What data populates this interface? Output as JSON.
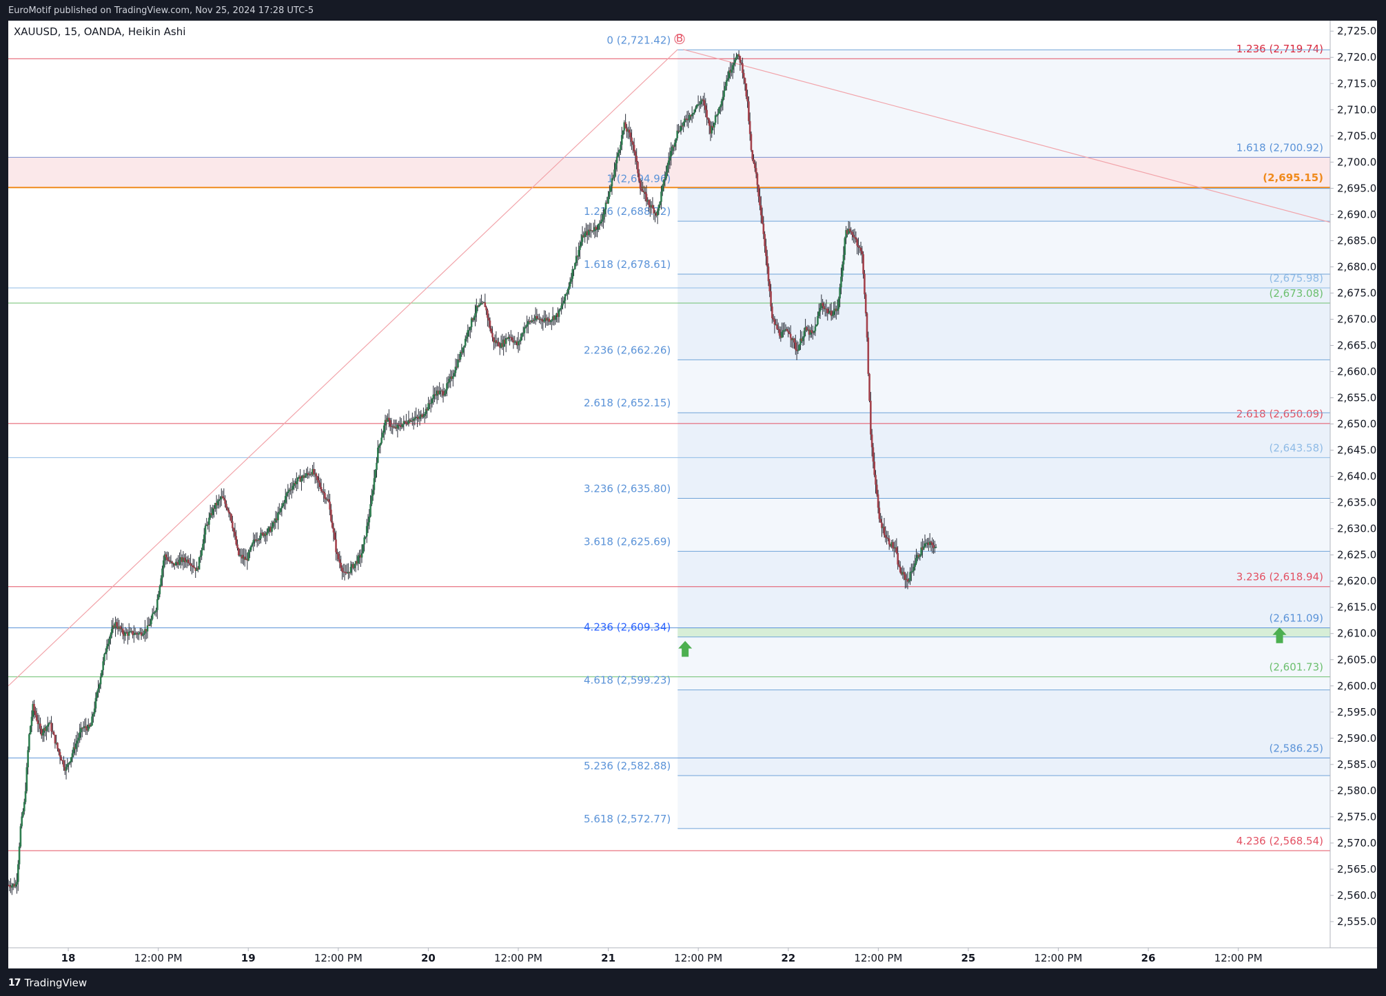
{
  "header": {
    "published": "EuroMotif published on TradingView.com, Nov 25, 2024 17:28 UTC-5"
  },
  "footer": {
    "logo_mark": "17",
    "brand": "TradingView"
  },
  "chart_data": {
    "type": "candlestick",
    "title": "XAUUSD, 15, OANDA, Heikin Ashi",
    "candle_style": "Heikin Ashi",
    "colors": {
      "up": "#2e7d4f",
      "down": "#a3414b",
      "wick": "#2a2e39"
    },
    "y_axis": {
      "range": [
        2550,
        2727
      ],
      "ticks": [
        "2,555.00",
        "2,560.00",
        "2,565.00",
        "2,570.00",
        "2,575.00",
        "2,580.00",
        "2,585.00",
        "2,590.00",
        "2,595.00",
        "2,600.00",
        "2,605.00",
        "2,610.00",
        "2,615.00",
        "2,620.00",
        "2,625.00",
        "2,630.00",
        "2,635.00",
        "2,640.00",
        "2,645.00",
        "2,650.00",
        "2,655.00",
        "2,660.00",
        "2,665.00",
        "2,670.00",
        "2,675.00",
        "2,680.00",
        "2,685.00",
        "2,690.00",
        "2,695.00",
        "2,700.00",
        "2,705.00",
        "2,710.00",
        "2,715.00",
        "2,720.00",
        "2,725.00"
      ],
      "tick_values": [
        2555,
        2560,
        2565,
        2570,
        2575,
        2580,
        2585,
        2590,
        2595,
        2600,
        2605,
        2610,
        2615,
        2620,
        2625,
        2630,
        2635,
        2640,
        2645,
        2650,
        2655,
        2660,
        2665,
        2670,
        2675,
        2680,
        2685,
        2690,
        2695,
        2700,
        2705,
        2710,
        2715,
        2720,
        2725
      ]
    },
    "x_axis": {
      "range": [
        0,
        705
      ],
      "ticks": [
        {
          "t": 32,
          "label": "18"
        },
        {
          "t": 80,
          "label": "12:00 PM"
        },
        {
          "t": 128,
          "label": "19"
        },
        {
          "t": 176,
          "label": "12:00 PM"
        },
        {
          "t": 224,
          "label": "20"
        },
        {
          "t": 272,
          "label": "12:00 PM"
        },
        {
          "t": 320,
          "label": "21"
        },
        {
          "t": 368,
          "label": "12:00 PM"
        },
        {
          "t": 416,
          "label": "22"
        },
        {
          "t": 464,
          "label": "12:00 PM"
        },
        {
          "t": 512,
          "label": "25"
        },
        {
          "t": 560,
          "label": "12:00 PM"
        },
        {
          "t": 608,
          "label": "26"
        },
        {
          "t": 656,
          "label": "12:00 PM"
        }
      ]
    },
    "price_path": [
      [
        0,
        2562
      ],
      [
        4,
        2562
      ],
      [
        6,
        2573
      ],
      [
        8,
        2578
      ],
      [
        10,
        2590
      ],
      [
        12,
        2596
      ],
      [
        16,
        2591
      ],
      [
        20,
        2593
      ],
      [
        24,
        2588
      ],
      [
        28,
        2584
      ],
      [
        32,
        2588
      ],
      [
        36,
        2592
      ],
      [
        40,
        2592
      ],
      [
        44,
        2600
      ],
      [
        48,
        2608
      ],
      [
        52,
        2612
      ],
      [
        56,
        2610
      ],
      [
        60,
        2610
      ],
      [
        64,
        2610
      ],
      [
        68,
        2611
      ],
      [
        72,
        2615
      ],
      [
        76,
        2625
      ],
      [
        80,
        2623
      ],
      [
        84,
        2624
      ],
      [
        88,
        2624
      ],
      [
        92,
        2622
      ],
      [
        96,
        2630
      ],
      [
        100,
        2634
      ],
      [
        104,
        2636
      ],
      [
        108,
        2633
      ],
      [
        112,
        2625
      ],
      [
        116,
        2624
      ],
      [
        120,
        2628
      ],
      [
        124,
        2629
      ],
      [
        128,
        2630
      ],
      [
        132,
        2633
      ],
      [
        136,
        2637
      ],
      [
        140,
        2639
      ],
      [
        144,
        2640
      ],
      [
        148,
        2641
      ],
      [
        152,
        2638
      ],
      [
        156,
        2635
      ],
      [
        160,
        2625
      ],
      [
        164,
        2621
      ],
      [
        168,
        2623
      ],
      [
        172,
        2625
      ],
      [
        176,
        2633
      ],
      [
        180,
        2645
      ],
      [
        184,
        2651
      ],
      [
        188,
        2649
      ],
      [
        192,
        2650
      ],
      [
        196,
        2651
      ],
      [
        200,
        2651
      ],
      [
        204,
        2653
      ],
      [
        208,
        2656
      ],
      [
        212,
        2656
      ],
      [
        216,
        2659
      ],
      [
        220,
        2663
      ],
      [
        224,
        2668
      ],
      [
        228,
        2672
      ],
      [
        232,
        2673
      ],
      [
        236,
        2666
      ],
      [
        240,
        2665
      ],
      [
        244,
        2667
      ],
      [
        248,
        2665
      ],
      [
        252,
        2669
      ],
      [
        256,
        2670
      ],
      [
        260,
        2670
      ],
      [
        264,
        2670
      ],
      [
        268,
        2671
      ],
      [
        272,
        2675
      ],
      [
        276,
        2681
      ],
      [
        280,
        2686
      ],
      [
        284,
        2687
      ],
      [
        288,
        2688
      ],
      [
        292,
        2693
      ],
      [
        296,
        2700
      ],
      [
        300,
        2707
      ],
      [
        304,
        2704
      ],
      [
        308,
        2695
      ],
      [
        312,
        2692
      ],
      [
        316,
        2690
      ],
      [
        318,
        2694
      ],
      [
        322,
        2701
      ],
      [
        326,
        2706
      ],
      [
        330,
        2708
      ],
      [
        334,
        2710
      ],
      [
        338,
        2712
      ],
      [
        342,
        2706
      ],
      [
        346,
        2710
      ],
      [
        350,
        2716
      ],
      [
        354,
        2720
      ],
      [
        356,
        2720
      ],
      [
        358,
        2717
      ],
      [
        360,
        2711
      ],
      [
        362,
        2701
      ],
      [
        364,
        2698
      ],
      [
        368,
        2686
      ],
      [
        372,
        2670
      ],
      [
        376,
        2667
      ],
      [
        380,
        2668
      ],
      [
        384,
        2664
      ],
      [
        388,
        2668
      ],
      [
        392,
        2667
      ],
      [
        396,
        2673
      ],
      [
        400,
        2671
      ],
      [
        404,
        2672
      ],
      [
        406,
        2680
      ],
      [
        408,
        2687
      ],
      [
        412,
        2686
      ],
      [
        416,
        2682
      ],
      [
        418,
        2668
      ],
      [
        420,
        2648
      ],
      [
        424,
        2632
      ],
      [
        428,
        2628
      ],
      [
        432,
        2626
      ],
      [
        434,
        2622
      ],
      [
        438,
        2620
      ],
      [
        442,
        2624
      ],
      [
        446,
        2627
      ],
      [
        450,
        2627
      ],
      [
        452,
        2626
      ]
    ],
    "time_map": {
      "chart_t_min": 0,
      "chart_t_max": 452,
      "axis_t_start": 0,
      "axis_t_end": 495
    },
    "horizontal_levels": [
      {
        "price": 2719.74,
        "color": "#e35062",
        "label": "1.236 (2,719.74)",
        "label_color": "#d8263c"
      },
      {
        "price": 2700.92,
        "color": "#7a8fcf",
        "label": "1.618 (2,700.92)",
        "label_color": "#5b93d8"
      },
      {
        "price": 2695.15,
        "color": "#f08a1c",
        "label": "(2,695.15)",
        "label_color": "#f08a1c",
        "bold": true
      },
      {
        "price": 2675.98,
        "color": "#8fbbe6",
        "label": "(2,675.98)",
        "label_color": "#8fbbe6"
      },
      {
        "price": 2673.08,
        "color": "#6cbf6e",
        "label": "(2,673.08)",
        "label_color": "#6cbf6e"
      },
      {
        "price": 2650.09,
        "color": "#e35062",
        "label": "2.618 (2,650.09)",
        "label_color": "#e35062"
      },
      {
        "price": 2643.58,
        "color": "#8fbbe6",
        "label": "(2,643.58)",
        "label_color": "#8fbbe6"
      },
      {
        "price": 2618.94,
        "color": "#e35062",
        "label": "3.236 (2,618.94)",
        "label_color": "#e35062"
      },
      {
        "price": 2611.09,
        "color": "#5b93d8",
        "label": "(2,611.09)",
        "label_color": "#5b93d8"
      },
      {
        "price": 2601.73,
        "color": "#6cbf6e",
        "label": "(2,601.73)",
        "label_color": "#6cbf6e"
      },
      {
        "price": 2586.25,
        "color": "#5b93d8",
        "label": "(2,586.25)",
        "label_color": "#5b93d8"
      },
      {
        "price": 2568.54,
        "color": "#e35062",
        "label": "4.236 (2,568.54)",
        "label_color": "#e35062"
      }
    ],
    "fib_extension_levels": [
      {
        "price": 2721.42,
        "label": "0 (2,721.42)"
      },
      {
        "price": 2694.96,
        "label": "1 (2,694.96)"
      },
      {
        "price": 2688.72,
        "label": "1.236 (2,688.72)"
      },
      {
        "price": 2678.61,
        "label": "1.618 (2,678.61)"
      },
      {
        "price": 2662.26,
        "label": "2.236 (2,662.26)"
      },
      {
        "price": 2652.15,
        "label": "2.618 (2,652.15)"
      },
      {
        "price": 2635.8,
        "label": "3.236 (2,635.80)"
      },
      {
        "price": 2625.69,
        "label": "3.618 (2,625.69)"
      },
      {
        "price": 2609.34,
        "label": "4.236 (2,609.34)",
        "highlight": true
      },
      {
        "price": 2599.23,
        "label": "4.618 (2,599.23)"
      },
      {
        "price": 2582.88,
        "label": "5.236 (2,582.88)"
      },
      {
        "price": 2572.77,
        "label": "5.618 (2,572.77)"
      }
    ],
    "fib_label_color": "#5b93d8",
    "fib_highlight_color": "#2962ff",
    "zones": [
      {
        "from": 2695.15,
        "to": 2700.92,
        "color": "#fbe8ea",
        "full_width": true
      },
      {
        "from": 2609.34,
        "to": 2611.09,
        "color": "#d7eed7",
        "full_width": false
      }
    ],
    "trend_lines": [
      {
        "from": [
          0,
          2600
        ],
        "to": [
          357,
          2721.5
        ],
        "color": "#f2a3a9"
      },
      {
        "from": [
          360,
          2721.5
        ],
        "to": [
          705,
          2688.5
        ],
        "color": "#f2a3a9"
      }
    ],
    "markers": [
      {
        "type": "point",
        "label": "B",
        "t": 358,
        "price": 2723.5,
        "color": "#e35062"
      },
      {
        "type": "arrow-up",
        "t": 361,
        "price": 2607,
        "color": "#4caf50"
      },
      {
        "type": "arrow-up",
        "t": 678,
        "price": 2609.6,
        "color": "#4caf50"
      }
    ],
    "last_price_marker": "#e35062",
    "grid": false,
    "fib_region_start_t": 357
  }
}
